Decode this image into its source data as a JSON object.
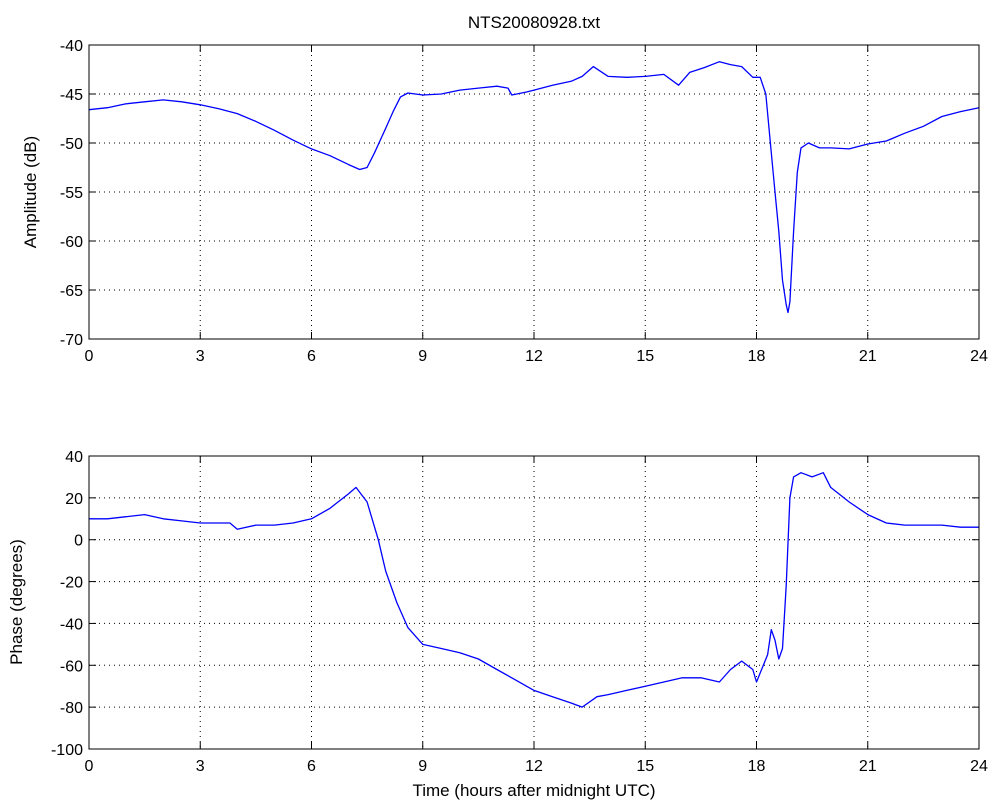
{
  "chart_data": [
    {
      "type": "line",
      "title": "NTS20080928.txt",
      "xlabel": "",
      "ylabel": "Amplitude (dB)",
      "xlim": [
        0,
        24
      ],
      "ylim": [
        -70,
        -40
      ],
      "xticks": [
        0,
        3,
        6,
        9,
        12,
        15,
        18,
        21,
        24
      ],
      "yticks": [
        -70,
        -65,
        -60,
        -55,
        -50,
        -45,
        -40
      ],
      "grid": true,
      "series_color": "#0000ff",
      "x": [
        0,
        0.5,
        1.0,
        1.5,
        2.0,
        2.5,
        3.0,
        3.5,
        4.0,
        4.5,
        5.0,
        5.5,
        6.0,
        6.5,
        7.0,
        7.3,
        7.5,
        7.7,
        8.0,
        8.2,
        8.4,
        8.6,
        9.0,
        9.5,
        10.0,
        10.5,
        11.0,
        11.3,
        11.4,
        11.8,
        12.0,
        12.5,
        13.0,
        13.3,
        13.6,
        14.0,
        14.5,
        15.0,
        15.5,
        15.9,
        16.2,
        16.6,
        17.0,
        17.3,
        17.6,
        17.9,
        18.1,
        18.25,
        18.4,
        18.5,
        18.6,
        18.7,
        18.8,
        18.85,
        18.9,
        19.0,
        19.1,
        19.2,
        19.4,
        19.7,
        20.0,
        20.5,
        21.0,
        21.5,
        22.0,
        22.5,
        23.0,
        23.5,
        24.0
      ],
      "y": [
        -46.6,
        -46.4,
        -46.0,
        -45.8,
        -45.6,
        -45.8,
        -46.1,
        -46.5,
        -47.0,
        -47.8,
        -48.7,
        -49.7,
        -50.6,
        -51.3,
        -52.2,
        -52.7,
        -52.5,
        -51.0,
        -48.5,
        -46.8,
        -45.3,
        -44.9,
        -45.1,
        -45.0,
        -44.6,
        -44.4,
        -44.2,
        -44.4,
        -45.1,
        -44.8,
        -44.6,
        -44.1,
        -43.7,
        -43.2,
        -42.2,
        -43.2,
        -43.3,
        -43.2,
        -43.0,
        -44.1,
        -42.8,
        -42.3,
        -41.7,
        -42.0,
        -42.2,
        -43.3,
        -43.3,
        -45.0,
        -51.0,
        -55.0,
        -59.0,
        -64.0,
        -66.5,
        -67.3,
        -66.2,
        -59.0,
        -53.0,
        -50.5,
        -50.0,
        -50.5,
        -50.5,
        -50.6,
        -50.1,
        -49.8,
        -49.0,
        -48.3,
        -47.3,
        -46.8,
        -46.4
      ]
    },
    {
      "type": "line",
      "title": "",
      "xlabel": "Time (hours after midnight UTC)",
      "ylabel": "Phase (degrees)",
      "xlim": [
        0,
        24
      ],
      "ylim": [
        -100,
        40
      ],
      "xticks": [
        0,
        3,
        6,
        9,
        12,
        15,
        18,
        21,
        24
      ],
      "yticks": [
        -100,
        -80,
        -60,
        -40,
        -20,
        0,
        20,
        40
      ],
      "grid": true,
      "series_color": "#0000ff",
      "x": [
        0,
        0.5,
        1.0,
        1.5,
        2.0,
        2.5,
        3.0,
        3.5,
        3.8,
        4.0,
        4.5,
        5.0,
        5.5,
        6.0,
        6.5,
        7.0,
        7.2,
        7.5,
        7.8,
        8.0,
        8.3,
        8.6,
        9.0,
        9.5,
        10.0,
        10.5,
        11.0,
        11.5,
        12.0,
        12.5,
        13.0,
        13.3,
        13.7,
        14.0,
        14.5,
        15.0,
        15.5,
        16.0,
        16.5,
        17.0,
        17.3,
        17.6,
        17.9,
        18.0,
        18.3,
        18.4,
        18.5,
        18.6,
        18.7,
        18.8,
        18.9,
        19.0,
        19.2,
        19.5,
        19.8,
        20.0,
        20.5,
        21.0,
        21.5,
        22.0,
        22.5,
        23.0,
        23.5,
        24.0
      ],
      "y": [
        10,
        10,
        11,
        12,
        10,
        9,
        8,
        8,
        8,
        5,
        7,
        7,
        8,
        10,
        15,
        22,
        25,
        18,
        0,
        -15,
        -30,
        -42,
        -50,
        -52,
        -54,
        -57,
        -62,
        -67,
        -72,
        -75,
        -78,
        -80,
        -75,
        -74,
        -72,
        -70,
        -68,
        -66,
        -66,
        -68,
        -62,
        -58,
        -62,
        -68,
        -55,
        -43,
        -48,
        -57,
        -52,
        -22,
        20,
        30,
        32,
        30,
        32,
        25,
        18,
        12,
        8,
        7,
        7,
        7,
        6,
        6
      ]
    }
  ]
}
